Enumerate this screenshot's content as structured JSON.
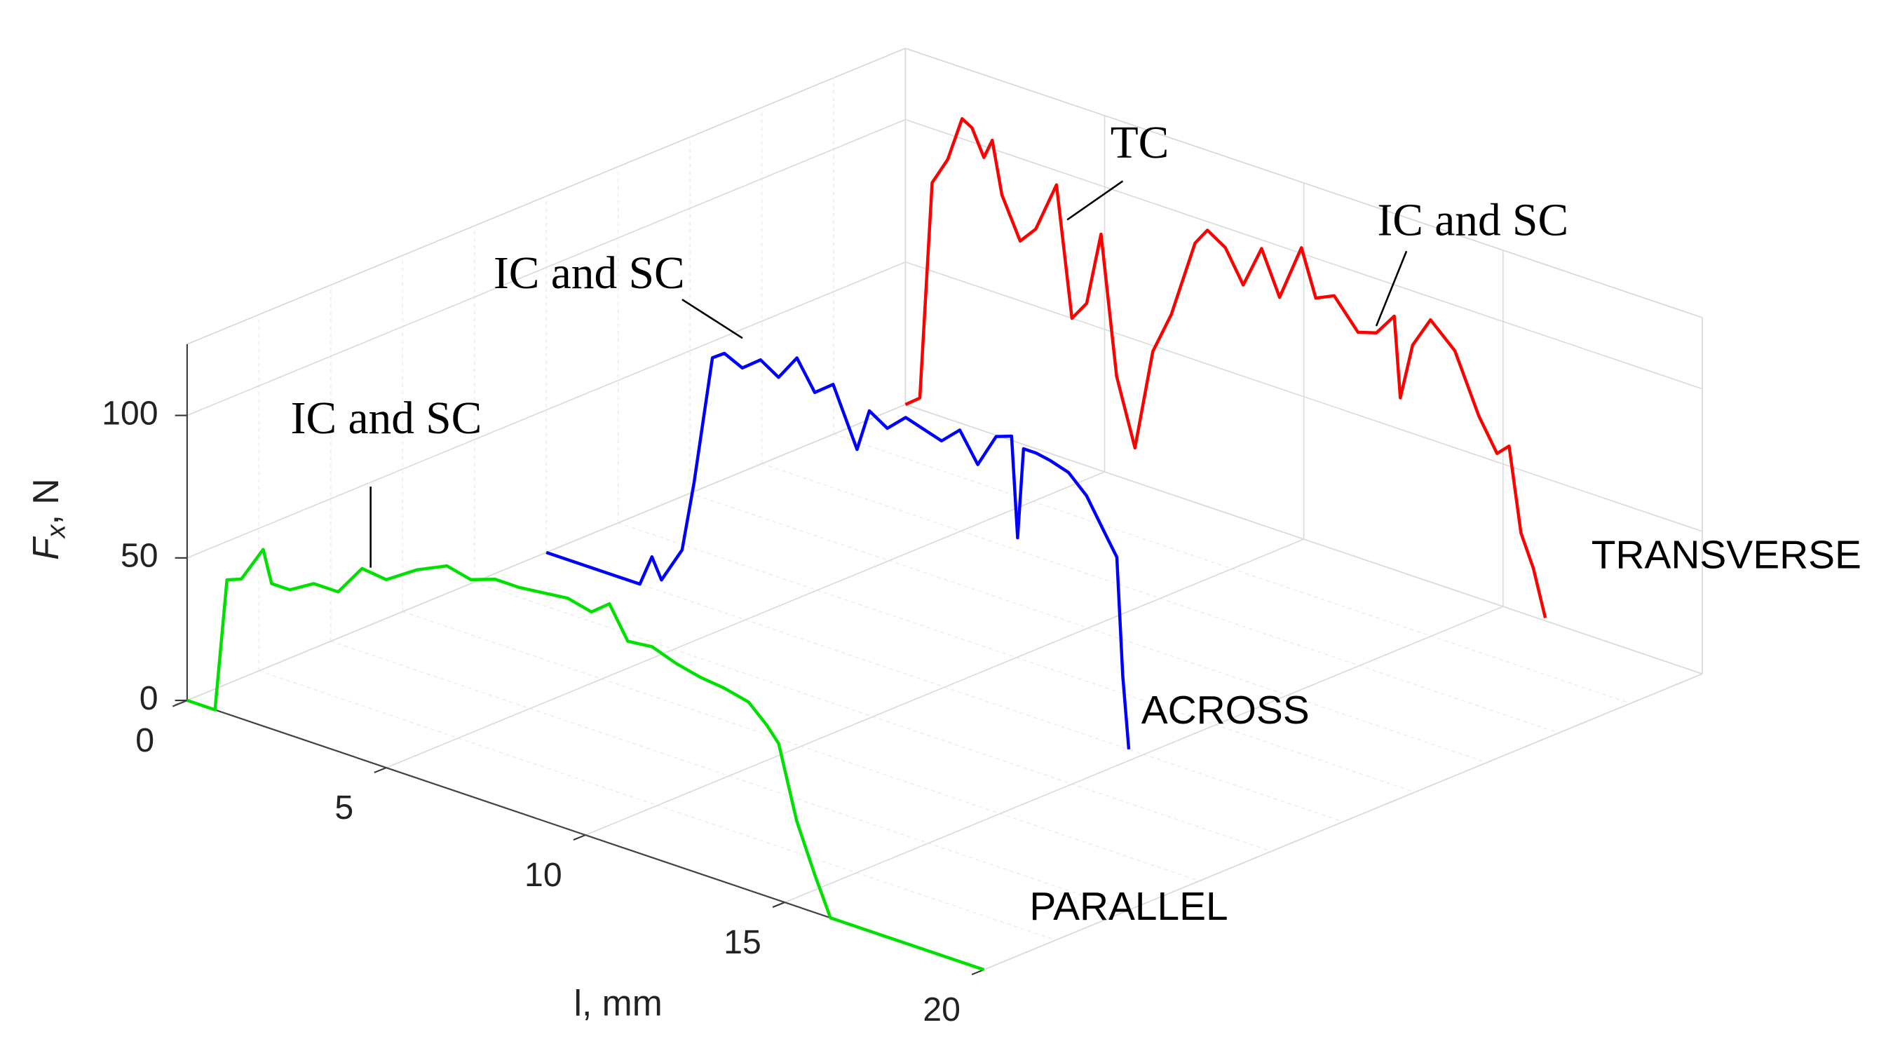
{
  "chart_data": {
    "type": "line3d",
    "x_label": "l, mm",
    "y_label": [
      "F",
      "x",
      ", N"
    ],
    "xlim": [
      0,
      20
    ],
    "xticks": [
      0,
      5,
      10,
      15,
      20
    ],
    "ylim": [
      0,
      125
    ],
    "yticks": [
      0,
      50,
      100
    ],
    "grid": true,
    "annotations": [
      "IC and SC",
      "IC and SC",
      "TC",
      "IC and SC"
    ],
    "series": [
      {
        "name": "PARALLEL",
        "color": "#00e000",
        "x": [
          0,
          0.7,
          1.0,
          1.36,
          1.91,
          2.12,
          2.58,
          3.18,
          3.79,
          4.39,
          5,
          5.76,
          6.52,
          7.12,
          7.73,
          8.33,
          8.94,
          9.55,
          10.15,
          10.6,
          11.06,
          11.67,
          12.27,
          12.88,
          13.48,
          14.09,
          14.55,
          14.85,
          15.3,
          15.76,
          16.15,
          20
        ],
        "values": [
          0,
          0,
          47,
          49,
          62,
          51,
          51,
          56,
          56,
          67,
          66,
          73,
          78,
          76,
          79,
          79,
          80,
          81,
          79,
          84,
          73,
          74,
          71,
          69,
          68,
          66,
          60,
          55,
          30,
          13,
          0,
          0
        ]
      },
      {
        "name": "ACROSS",
        "color": "#0000ff",
        "x": [
          0,
          2.35,
          2.65,
          2.89,
          3.41,
          3.71,
          4.17,
          4.47,
          4.92,
          5.38,
          5.83,
          6.29,
          6.74,
          7.2,
          7.8,
          8.11,
          8.56,
          9.02,
          9.47,
          9.92,
          10.38,
          10.83,
          11.29,
          11.68,
          11.83,
          11.98,
          12.29,
          12.65,
          13.11,
          13.56,
          14.02,
          14.32,
          14.47,
          14.62
        ],
        "values": [
          0,
          0,
          11,
          4,
          17,
          42,
          88,
          91,
          88,
          93,
          89,
          98,
          88,
          93,
          73,
          88,
          84,
          90,
          88,
          86,
          92,
          82,
          94,
          96,
          61,
          93,
          93,
          92,
          90,
          84,
          73,
          66,
          25,
          0
        ]
      },
      {
        "name": "TRANSVERSE",
        "color": "#ff0000",
        "x": [
          0,
          0.36,
          0.67,
          1.06,
          1.42,
          1.67,
          1.97,
          2.18,
          2.42,
          2.88,
          3.27,
          3.79,
          4.18,
          4.55,
          4.91,
          5.3,
          5.76,
          6.21,
          6.67,
          7.27,
          7.58,
          8.03,
          8.48,
          8.94,
          9.39,
          9.94,
          10.3,
          10.76,
          11.36,
          11.82,
          12.27,
          12.42,
          12.73,
          13.18,
          13.79,
          14.39,
          14.85,
          15.15,
          15.45,
          15.76,
          16.06
        ],
        "values": [
          0,
          4,
          81,
          91,
          107,
          105,
          96,
          103,
          85,
          71,
          77,
          95,
          50,
          57,
          83,
          35,
          12,
          48,
          63,
          91,
          97,
          93,
          82,
          97,
          82,
          102,
          86,
          89,
          79,
          81,
          89,
          61,
          81,
          92,
          84,
          64,
          53,
          57,
          28,
          17,
          1
        ]
      }
    ]
  }
}
